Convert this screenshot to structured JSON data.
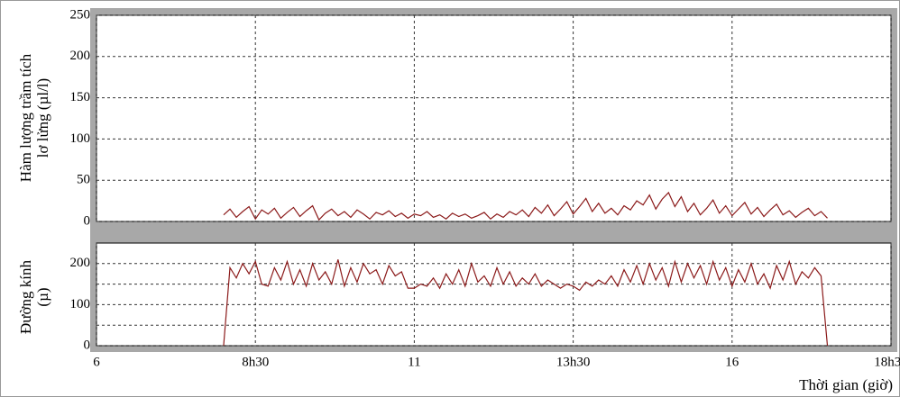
{
  "chart_data": [
    {
      "type": "line",
      "ylabel": [
        "Hàm lượng trầm tích",
        "lơ lửng (µl/l)"
      ],
      "xlim": [
        6,
        18.5
      ],
      "xticks": [
        6,
        8.5,
        11,
        13.5,
        16,
        18.5
      ],
      "ylim": [
        0,
        250
      ],
      "yticks": [
        0,
        50,
        100,
        150,
        200,
        250
      ],
      "grid": true,
      "x": [
        8.0,
        8.1,
        8.2,
        8.3,
        8.4,
        8.5,
        8.6,
        8.7,
        8.8,
        8.9,
        9.0,
        9.1,
        9.2,
        9.3,
        9.4,
        9.5,
        9.6,
        9.7,
        9.8,
        9.9,
        10.0,
        10.1,
        10.2,
        10.3,
        10.4,
        10.5,
        10.6,
        10.7,
        10.8,
        10.9,
        11.0,
        11.1,
        11.2,
        11.3,
        11.4,
        11.5,
        11.6,
        11.7,
        11.8,
        11.9,
        12.0,
        12.1,
        12.2,
        12.3,
        12.4,
        12.5,
        12.6,
        12.7,
        12.8,
        12.9,
        13.0,
        13.1,
        13.2,
        13.3,
        13.4,
        13.5,
        13.6,
        13.7,
        13.8,
        13.9,
        14.0,
        14.1,
        14.2,
        14.3,
        14.4,
        14.5,
        14.6,
        14.7,
        14.8,
        14.9,
        15.0,
        15.1,
        15.2,
        15.3,
        15.4,
        15.5,
        15.6,
        15.7,
        15.8,
        15.9,
        16.0,
        16.1,
        16.2,
        16.3,
        16.4,
        16.5,
        16.6,
        16.7,
        16.8,
        16.9,
        17.0,
        17.1,
        17.2,
        17.3,
        17.4,
        17.5
      ],
      "series": [
        {
          "color": "#8b1a1a",
          "values": [
            8,
            15,
            5,
            12,
            18,
            3,
            14,
            9,
            16,
            4,
            11,
            17,
            6,
            13,
            19,
            2,
            10,
            15,
            7,
            12,
            5,
            14,
            9,
            3,
            11,
            8,
            13,
            6,
            10,
            4,
            9,
            7,
            12,
            5,
            8,
            3,
            10,
            6,
            9,
            4,
            7,
            11,
            3,
            9,
            5,
            12,
            8,
            14,
            6,
            17,
            10,
            20,
            7,
            15,
            24,
            9,
            18,
            28,
            12,
            22,
            10,
            16,
            8,
            19,
            14,
            25,
            20,
            32,
            15,
            27,
            35,
            18,
            30,
            12,
            22,
            8,
            16,
            26,
            10,
            19,
            7,
            15,
            23,
            9,
            17,
            6,
            14,
            21,
            8,
            13,
            5,
            11,
            16,
            7,
            12,
            4
          ]
        }
      ]
    },
    {
      "type": "line",
      "ylabel": [
        "Đường kính",
        "(µ)"
      ],
      "xlabel": "Thời gian (giờ)",
      "xlim": [
        6,
        18.5
      ],
      "xticks": [
        6,
        {
          "value": 8.5,
          "label": "8h30"
        },
        11,
        {
          "value": 13.5,
          "label": "13h30"
        },
        16,
        {
          "value": 18.5,
          "label": "18h30"
        }
      ],
      "ylim": [
        0,
        250
      ],
      "yticks": [
        0,
        100,
        200
      ],
      "minor_grid": [
        50,
        150
      ],
      "grid": true,
      "x": [
        8.0,
        8.1,
        8.2,
        8.3,
        8.4,
        8.5,
        8.6,
        8.7,
        8.8,
        8.9,
        9.0,
        9.1,
        9.2,
        9.3,
        9.4,
        9.5,
        9.6,
        9.7,
        9.8,
        9.9,
        10.0,
        10.1,
        10.2,
        10.3,
        10.4,
        10.5,
        10.6,
        10.7,
        10.8,
        10.9,
        11.0,
        11.1,
        11.2,
        11.3,
        11.4,
        11.5,
        11.6,
        11.7,
        11.8,
        11.9,
        12.0,
        12.1,
        12.2,
        12.3,
        12.4,
        12.5,
        12.6,
        12.7,
        12.8,
        12.9,
        13.0,
        13.1,
        13.2,
        13.3,
        13.4,
        13.5,
        13.6,
        13.7,
        13.8,
        13.9,
        14.0,
        14.1,
        14.2,
        14.3,
        14.4,
        14.5,
        14.6,
        14.7,
        14.8,
        14.9,
        15.0,
        15.1,
        15.2,
        15.3,
        15.4,
        15.5,
        15.6,
        15.7,
        15.8,
        15.9,
        16.0,
        16.1,
        16.2,
        16.3,
        16.4,
        16.5,
        16.6,
        16.7,
        16.8,
        16.9,
        17.0,
        17.1,
        17.2,
        17.3,
        17.4,
        17.5
      ],
      "series": [
        {
          "color": "#8b1a1a",
          "values": [
            0,
            190,
            165,
            200,
            175,
            205,
            150,
            145,
            190,
            160,
            205,
            150,
            185,
            145,
            200,
            160,
            180,
            150,
            210,
            145,
            190,
            155,
            200,
            175,
            185,
            150,
            195,
            170,
            180,
            140,
            140,
            150,
            145,
            165,
            140,
            175,
            150,
            185,
            145,
            200,
            155,
            170,
            145,
            190,
            150,
            180,
            145,
            165,
            150,
            175,
            145,
            160,
            150,
            140,
            150,
            145,
            135,
            155,
            145,
            160,
            150,
            170,
            145,
            185,
            155,
            195,
            150,
            200,
            160,
            190,
            145,
            205,
            155,
            200,
            165,
            195,
            150,
            205,
            160,
            190,
            145,
            185,
            155,
            200,
            150,
            175,
            140,
            195,
            160,
            205,
            150,
            180,
            165,
            190,
            170,
            0
          ]
        }
      ]
    }
  ]
}
